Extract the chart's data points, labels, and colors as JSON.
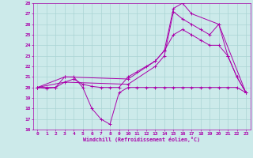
{
  "xlabel": "Windchill (Refroidissement éolien,°C)",
  "bg_color": "#cceaea",
  "grid_color": "#aad4d4",
  "line_color": "#aa00aa",
  "xlim": [
    -0.5,
    23.5
  ],
  "ylim": [
    16,
    28
  ],
  "yticks": [
    16,
    17,
    18,
    19,
    20,
    21,
    22,
    23,
    24,
    25,
    26,
    27,
    28
  ],
  "xticks": [
    0,
    1,
    2,
    3,
    4,
    5,
    6,
    7,
    8,
    9,
    10,
    11,
    12,
    13,
    14,
    15,
    16,
    17,
    18,
    19,
    20,
    21,
    22,
    23
  ],
  "series1_x": [
    0,
    1,
    2,
    3,
    4,
    5,
    6,
    7,
    8,
    9,
    10,
    11,
    12,
    13,
    14,
    15,
    16,
    17,
    18,
    19,
    20,
    21,
    22,
    23
  ],
  "series1_y": [
    20,
    19.9,
    20,
    21,
    21,
    20,
    18,
    17,
    16.5,
    19.5,
    20,
    20,
    20,
    20,
    20,
    20,
    20,
    20,
    20,
    20,
    20,
    20,
    20,
    19.5
  ],
  "series2_x": [
    0,
    1,
    2,
    3,
    4,
    5,
    6,
    7,
    8,
    9,
    10,
    11,
    12,
    13,
    14,
    15,
    16,
    17,
    18,
    19,
    20,
    21,
    22,
    23
  ],
  "series2_y": [
    20,
    20,
    20,
    20.5,
    20.8,
    20.3,
    20.1,
    20,
    20,
    20,
    21,
    21.5,
    22,
    22.5,
    23.5,
    25,
    25.5,
    25,
    24.5,
    24,
    24,
    23,
    21,
    19.5
  ],
  "series3_x": [
    0,
    3,
    10,
    13,
    14,
    15,
    16,
    17,
    20,
    23
  ],
  "series3_y": [
    20,
    21,
    20.8,
    22.5,
    23.5,
    27.5,
    28,
    27,
    26,
    19.5
  ],
  "series4_x": [
    0,
    3,
    10,
    13,
    14,
    15,
    16,
    17,
    18,
    19,
    20,
    21,
    22,
    23
  ],
  "series4_y": [
    20,
    20.5,
    20.3,
    22,
    23,
    27.2,
    26.5,
    26,
    25.5,
    25,
    26,
    23,
    21,
    19.5
  ]
}
